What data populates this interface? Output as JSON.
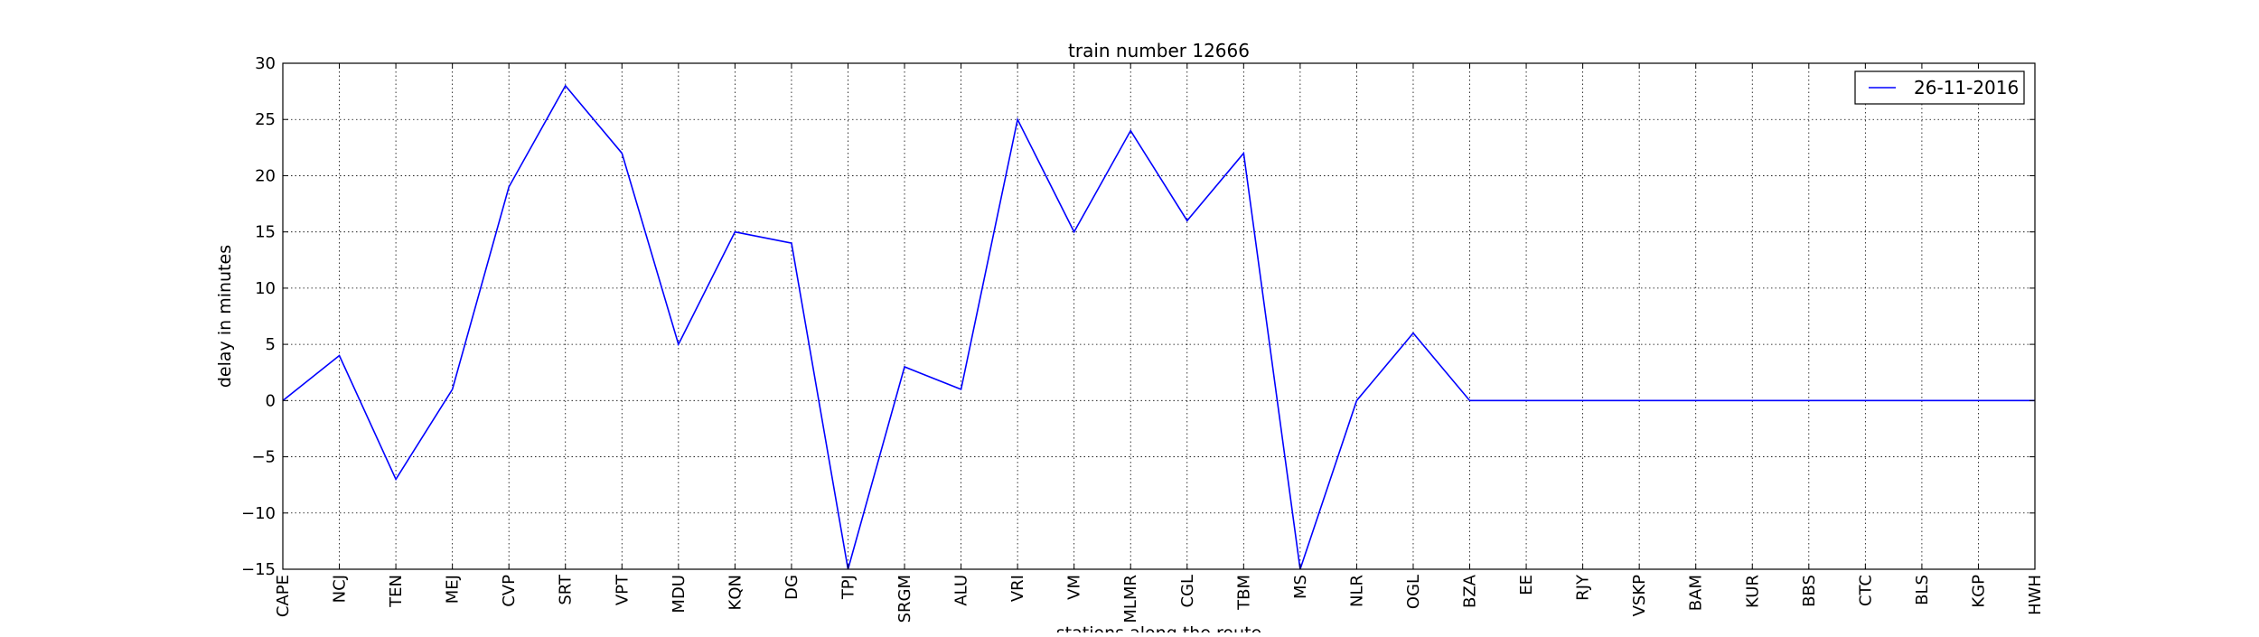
{
  "chart_data": {
    "type": "line",
    "title": "train number 12666",
    "xlabel": "stations along the route",
    "ylabel": "delay in minutes",
    "ylim": [
      -15,
      30
    ],
    "yticks": [
      -15,
      -10,
      -5,
      0,
      5,
      10,
      15,
      20,
      25,
      30
    ],
    "ytick_labels": [
      "−15",
      "−10",
      "−5",
      "0",
      "5",
      "10",
      "15",
      "20",
      "25",
      "30"
    ],
    "grid": true,
    "grid_style": "dotted",
    "legend_position": "top-right",
    "categories": [
      "CAPE",
      "NCJ",
      "TEN",
      "MEJ",
      "CVP",
      "SRT",
      "VPT",
      "MDU",
      "KQN",
      "DG",
      "TPJ",
      "SRGM",
      "ALU",
      "VRI",
      "VM",
      "MLMR",
      "CGL",
      "TBM",
      "MS",
      "NLR",
      "OGL",
      "BZA",
      "EE",
      "RJY",
      "VSKP",
      "BAM",
      "KUR",
      "BBS",
      "CTC",
      "BLS",
      "KGP",
      "HWH"
    ],
    "series": [
      {
        "name": "26-11-2016",
        "color": "#0000ff",
        "values": [
          0,
          4,
          -7,
          1,
          19,
          28,
          22,
          5,
          15,
          14,
          -15,
          3,
          1,
          25,
          15,
          24,
          16,
          22,
          -15,
          0,
          6,
          0,
          0,
          0,
          0,
          0,
          0,
          0,
          0,
          0,
          0,
          0
        ]
      }
    ]
  }
}
